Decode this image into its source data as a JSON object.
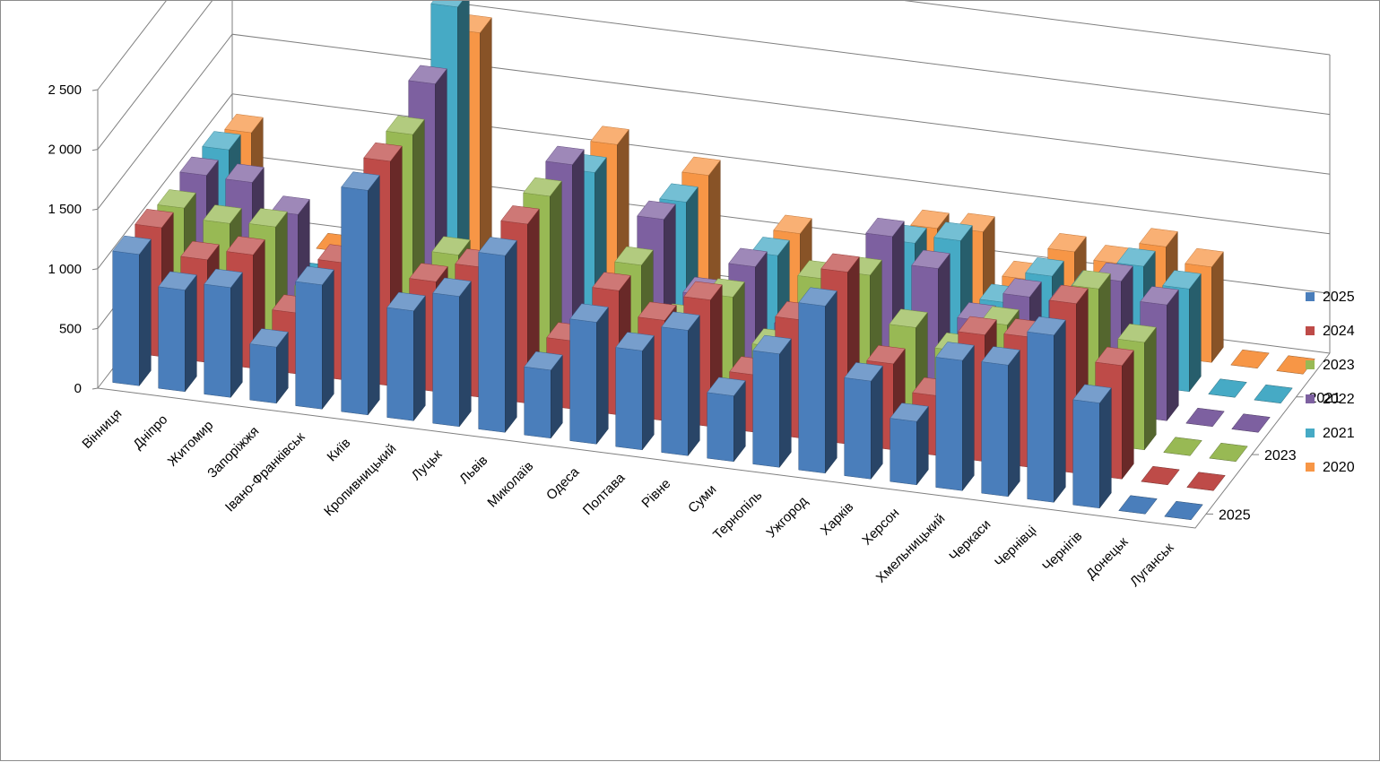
{
  "chart_data": {
    "type": "bar",
    "subtype": "3d-column",
    "title": "",
    "xlabel": "",
    "ylabel": "",
    "ylim": [
      0,
      2500
    ],
    "y_ticks": [
      "0",
      "500",
      "1 000",
      "1 500",
      "2 000",
      "2 500"
    ],
    "grid": true,
    "legend_position": "right",
    "depth_axis_labels": [
      "2021",
      "2023",
      "2025"
    ],
    "categories": [
      "Вінниця",
      "Дніпро",
      "Житомир",
      "Запоріжжя",
      "Івано-Франківськ",
      "Київ",
      "Кропивницький",
      "Луцьк",
      "Львів",
      "Миколаїв",
      "Одеса",
      "Полтава",
      "Рівне",
      "Суми",
      "Тернопіль",
      "Ужгород",
      "Харків",
      "Херсон",
      "Хмельницький",
      "Черкаси",
      "Чернівці",
      "Чернігів",
      "Донецьк",
      "Луганськ"
    ],
    "series": [
      {
        "name": "2025",
        "color": "#4a7ebb",
        "values": [
          1100,
          850,
          920,
          470,
          1040,
          1880,
          920,
          1090,
          1480,
          570,
          1020,
          830,
          1050,
          550,
          950,
          1400,
          820,
          530,
          1090,
          1100,
          1400,
          880,
          0,
          0
        ]
      },
      {
        "name": "2024",
        "color": "#be4b48",
        "values": [
          1080,
          860,
          950,
          510,
          980,
          1880,
          920,
          1090,
          1500,
          570,
          1040,
          840,
          1060,
          480,
          990,
          1440,
          720,
          500,
          1060,
          1090,
          1420,
          950,
          0,
          0
        ]
      },
      {
        "name": "2023",
        "color": "#98b954",
        "values": [
          1000,
          920,
          940,
          470,
          0,
          1860,
          900,
          0,
          1490,
          310,
          1010,
          580,
          840,
          470,
          1090,
          1170,
          780,
          630,
          900,
          840,
          1300,
          900,
          0,
          0
        ]
      },
      {
        "name": "2022",
        "color": "#7d60a0",
        "values": [
          1030,
          1020,
          800,
          280,
          0,
          2040,
          0,
          0,
          1510,
          0,
          1150,
          560,
          850,
          400,
          0,
          1250,
          1030,
          640,
          890,
          880,
          1120,
          970,
          0,
          0
        ]
      },
      {
        "name": "2021",
        "color": "#46aac5",
        "values": [
          1000,
          0,
          0,
          0,
          0,
          2440,
          0,
          0,
          1200,
          0,
          1050,
          0,
          700,
          0,
          0,
          950,
          1020,
          550,
          820,
          760,
          1000,
          860,
          0,
          0
        ]
      },
      {
        "name": "2020",
        "color": "#f79646",
        "values": [
          900,
          0,
          0,
          0,
          0,
          1980,
          0,
          0,
          1190,
          0,
          1030,
          0,
          640,
          0,
          0,
          830,
          850,
          500,
          780,
          730,
          920,
          800,
          0,
          0
        ]
      }
    ]
  }
}
